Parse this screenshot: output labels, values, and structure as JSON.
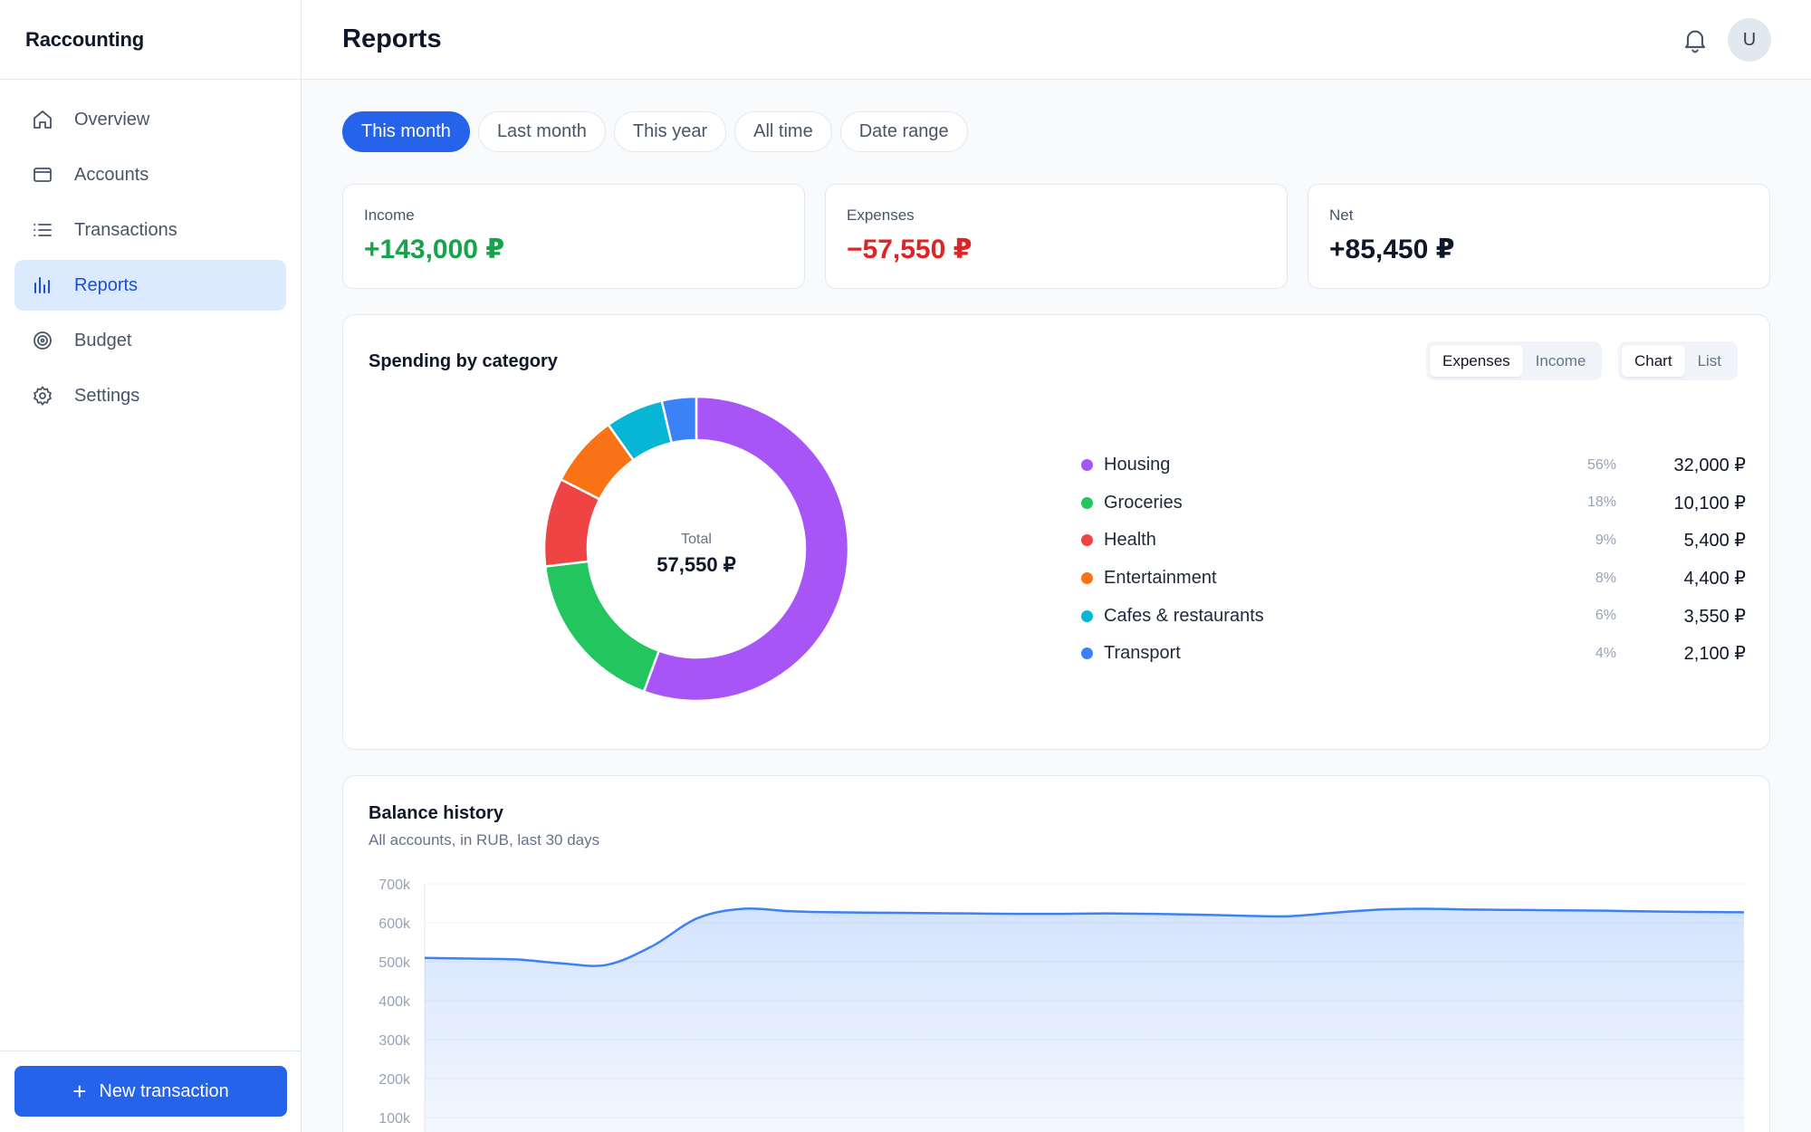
{
  "app": {
    "name": "Raccounting"
  },
  "sidebar": {
    "items": [
      {
        "label": "Overview",
        "icon": "home-icon"
      },
      {
        "label": "Accounts",
        "icon": "wallet-icon"
      },
      {
        "label": "Transactions",
        "icon": "list-icon"
      },
      {
        "label": "Reports",
        "icon": "bar-chart-icon",
        "active": true
      },
      {
        "label": "Budget",
        "icon": "target-icon"
      },
      {
        "label": "Settings",
        "icon": "gear-icon"
      }
    ],
    "new_button": "New transaction"
  },
  "header": {
    "title": "Reports",
    "avatar": "U"
  },
  "periods": [
    "This month",
    "Last month",
    "This year",
    "All time",
    "Date range"
  ],
  "active_period": "This month",
  "stats": {
    "income": {
      "label": "Income",
      "value": "+143,000 ₽"
    },
    "expenses": {
      "label": "Expenses",
      "value": "−57,550 ₽"
    },
    "net": {
      "label": "Net",
      "value": "+85,450 ₽"
    }
  },
  "spending": {
    "title": "Spending by category",
    "toggle_type": [
      "Expenses",
      "Income"
    ],
    "toggle_view": [
      "Chart",
      "List"
    ],
    "center_label": "Total",
    "center_value": "57,550 ₽",
    "categories": [
      {
        "name": "Housing",
        "pct": "56%",
        "amount": "32,000 ₽",
        "value": 32000,
        "color": "#a855f7"
      },
      {
        "name": "Groceries",
        "pct": "18%",
        "amount": "10,100 ₽",
        "value": 10100,
        "color": "#22c55e"
      },
      {
        "name": "Health",
        "pct": "9%",
        "amount": "5,400 ₽",
        "value": 5400,
        "color": "#ef4444"
      },
      {
        "name": "Entertainment",
        "pct": "8%",
        "amount": "4,400 ₽",
        "value": 4400,
        "color": "#f97316"
      },
      {
        "name": "Cafes & restaurants",
        "pct": "6%",
        "amount": "3,550 ₽",
        "value": 3550,
        "color": "#06b6d4"
      },
      {
        "name": "Transport",
        "pct": "4%",
        "amount": "2,100 ₽",
        "value": 2100,
        "color": "#3b82f6"
      }
    ]
  },
  "balance": {
    "title": "Balance history",
    "subtitle": "All accounts, in RUB, last 30 days"
  },
  "chart_data": [
    {
      "type": "pie",
      "categories": [
        "Housing",
        "Groceries",
        "Health",
        "Entertainment",
        "Cafes & restaurants",
        "Transport"
      ],
      "values": [
        32000,
        10100,
        5400,
        4400,
        3550,
        2100
      ]
    },
    {
      "type": "area",
      "ylim": [
        0,
        700000
      ],
      "yticks": [
        "700k",
        "600k",
        "500k",
        "400k",
        "300k",
        "200k",
        "100k"
      ],
      "ytick_values": [
        700000,
        600000,
        500000,
        400000,
        300000,
        200000,
        100000
      ],
      "x": [
        1,
        2,
        3,
        4,
        5,
        6,
        7,
        8,
        9,
        10,
        11,
        12,
        13,
        14,
        15,
        16,
        17,
        18,
        19,
        20,
        21,
        22,
        23,
        24,
        25,
        26,
        27,
        28,
        29,
        30
      ],
      "values": [
        510000,
        508000,
        506000,
        496000,
        492000,
        540000,
        612000,
        636000,
        630000,
        627000,
        626000,
        625000,
        624000,
        623000,
        623000,
        624000,
        623000,
        621000,
        618000,
        617000,
        626000,
        634000,
        636000,
        634000,
        633000,
        632000,
        631000,
        629000,
        628000,
        627000
      ],
      "grid": true,
      "color": "#3b82f6"
    }
  ]
}
